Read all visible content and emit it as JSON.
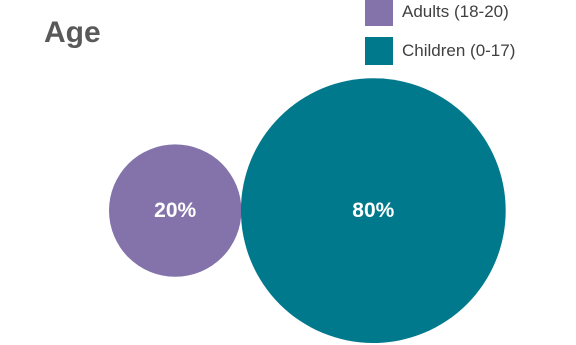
{
  "chart_data": {
    "type": "bubble",
    "title": "Age",
    "series": [
      {
        "name": "Adults (18-20)",
        "value": 20,
        "label": "20%",
        "color": "#8473AA"
      },
      {
        "name": "Children (0-17)",
        "value": 80,
        "label": "80%",
        "color": "#00798C"
      }
    ],
    "legend_position": "top-right"
  }
}
